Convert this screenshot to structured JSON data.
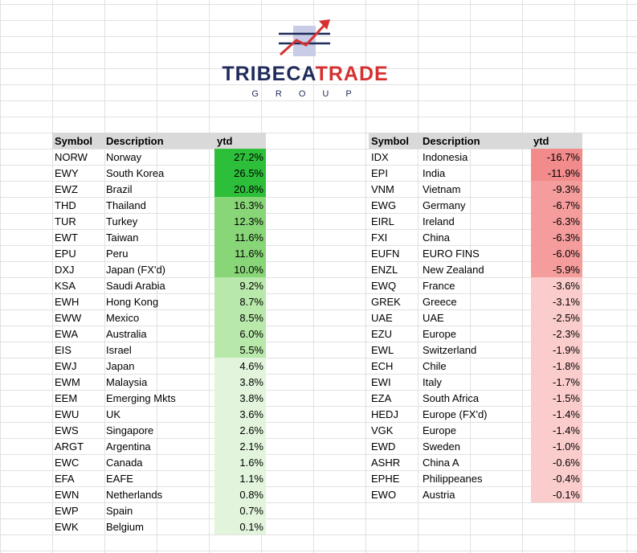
{
  "logo": {
    "brand_a": "TRIBECA",
    "brand_b": "TRADE",
    "sub": "GROUP",
    "icon": "rising-arrow-chart-icon"
  },
  "colors": {
    "header": "#d9d9d9",
    "brand_navy": "#1f2b5a",
    "brand_red": "#d63030"
  },
  "left_table": {
    "headers": [
      "Symbol",
      "Description",
      "ytd"
    ],
    "rows": [
      {
        "symbol": "NORW",
        "desc": "Norway",
        "ytd": "27.2%",
        "color": "#2dbf3a"
      },
      {
        "symbol": "EWY",
        "desc": "South Korea",
        "ytd": "26.5%",
        "color": "#2dbf3a"
      },
      {
        "symbol": "EWZ",
        "desc": "Brazil",
        "ytd": "20.8%",
        "color": "#2dbf3a"
      },
      {
        "symbol": "THD",
        "desc": "Thailand",
        "ytd": "16.3%",
        "color": "#88d678"
      },
      {
        "symbol": "TUR",
        "desc": "Turkey",
        "ytd": "12.3%",
        "color": "#88d678"
      },
      {
        "symbol": "EWT",
        "desc": "Taiwan",
        "ytd": "11.6%",
        "color": "#88d678"
      },
      {
        "symbol": "EPU",
        "desc": "Peru",
        "ytd": "11.6%",
        "color": "#88d678"
      },
      {
        "symbol": "DXJ",
        "desc": "Japan (FX'd)",
        "ytd": "10.0%",
        "color": "#88d678"
      },
      {
        "symbol": "KSA",
        "desc": "Saudi Arabia",
        "ytd": "9.2%",
        "color": "#b9e8ab"
      },
      {
        "symbol": "EWH",
        "desc": "Hong Kong",
        "ytd": "8.7%",
        "color": "#b9e8ab"
      },
      {
        "symbol": "EWW",
        "desc": "Mexico",
        "ytd": "8.5%",
        "color": "#b9e8ab"
      },
      {
        "symbol": "EWA",
        "desc": "Australia",
        "ytd": "6.0%",
        "color": "#b9e8ab"
      },
      {
        "symbol": "EIS",
        "desc": "Israel",
        "ytd": "5.5%",
        "color": "#b9e8ab"
      },
      {
        "symbol": "EWJ",
        "desc": "Japan",
        "ytd": "4.6%",
        "color": "#e2f5dc"
      },
      {
        "symbol": "EWM",
        "desc": "Malaysia",
        "ytd": "3.8%",
        "color": "#e2f5dc"
      },
      {
        "symbol": "EEM",
        "desc": "Emerging Mkts",
        "ytd": "3.8%",
        "color": "#e2f5dc"
      },
      {
        "symbol": "EWU",
        "desc": "UK",
        "ytd": "3.6%",
        "color": "#e2f5dc"
      },
      {
        "symbol": "EWS",
        "desc": "Singapore",
        "ytd": "2.6%",
        "color": "#e2f5dc"
      },
      {
        "symbol": "ARGT",
        "desc": "Argentina",
        "ytd": "2.1%",
        "color": "#e2f5dc"
      },
      {
        "symbol": "EWC",
        "desc": "Canada",
        "ytd": "1.6%",
        "color": "#e2f5dc"
      },
      {
        "symbol": "EFA",
        "desc": "EAFE",
        "ytd": "1.1%",
        "color": "#e2f5dc"
      },
      {
        "symbol": "EWN",
        "desc": "Netherlands",
        "ytd": "0.8%",
        "color": "#e2f5dc"
      },
      {
        "symbol": "EWP",
        "desc": "Spain",
        "ytd": "0.7%",
        "color": "#e2f5dc"
      },
      {
        "symbol": "EWK",
        "desc": "Belgium",
        "ytd": "0.1%",
        "color": "#e2f5dc"
      }
    ]
  },
  "right_table": {
    "headers": [
      "Symbol",
      "Description",
      "ytd"
    ],
    "rows": [
      {
        "symbol": "IDX",
        "desc": "Indonesia",
        "ytd": "-16.7%",
        "color": "#f28b8b"
      },
      {
        "symbol": "EPI",
        "desc": "India",
        "ytd": "-11.9%",
        "color": "#f28b8b"
      },
      {
        "symbol": "VNM",
        "desc": "Vietnam",
        "ytd": "-9.3%",
        "color": "#f59c9c"
      },
      {
        "symbol": "EWG",
        "desc": "Germany",
        "ytd": "-6.7%",
        "color": "#f59c9c"
      },
      {
        "symbol": "EIRL",
        "desc": "Ireland",
        "ytd": "-6.3%",
        "color": "#f59c9c"
      },
      {
        "symbol": "FXI",
        "desc": "China",
        "ytd": "-6.3%",
        "color": "#f59c9c"
      },
      {
        "symbol": "EUFN",
        "desc": "EURO FINS",
        "ytd": "-6.0%",
        "color": "#f59c9c"
      },
      {
        "symbol": "ENZL",
        "desc": "New Zealand",
        "ytd": "-5.9%",
        "color": "#f59c9c"
      },
      {
        "symbol": "EWQ",
        "desc": "France",
        "ytd": "-3.6%",
        "color": "#fbcccc"
      },
      {
        "symbol": "GREK",
        "desc": "Greece",
        "ytd": "-3.1%",
        "color": "#fbcccc"
      },
      {
        "symbol": "UAE",
        "desc": "UAE",
        "ytd": "-2.5%",
        "color": "#fbcccc"
      },
      {
        "symbol": "EZU",
        "desc": "Europe",
        "ytd": "-2.3%",
        "color": "#fbcccc"
      },
      {
        "symbol": "EWL",
        "desc": "Switzerland",
        "ytd": "-1.9%",
        "color": "#fbcccc"
      },
      {
        "symbol": "ECH",
        "desc": "Chile",
        "ytd": "-1.8%",
        "color": "#fbcccc"
      },
      {
        "symbol": "EWI",
        "desc": "Italy",
        "ytd": "-1.7%",
        "color": "#fbcccc"
      },
      {
        "symbol": "EZA",
        "desc": "South Africa",
        "ytd": "-1.5%",
        "color": "#fbcccc"
      },
      {
        "symbol": "HEDJ",
        "desc": "Europe (FX'd)",
        "ytd": "-1.4%",
        "color": "#fbcccc"
      },
      {
        "symbol": "VGK",
        "desc": "Europe",
        "ytd": "-1.4%",
        "color": "#fbcccc"
      },
      {
        "symbol": "EWD",
        "desc": "Sweden",
        "ytd": "-1.0%",
        "color": "#fbcccc"
      },
      {
        "symbol": "ASHR",
        "desc": "China A",
        "ytd": "-0.6%",
        "color": "#fbcccc"
      },
      {
        "symbol": "EPHE",
        "desc": "Philippeanes",
        "ytd": "-0.4%",
        "color": "#fbcccc"
      },
      {
        "symbol": "EWO",
        "desc": "Austria",
        "ytd": "-0.1%",
        "color": "#fbcccc"
      }
    ]
  }
}
